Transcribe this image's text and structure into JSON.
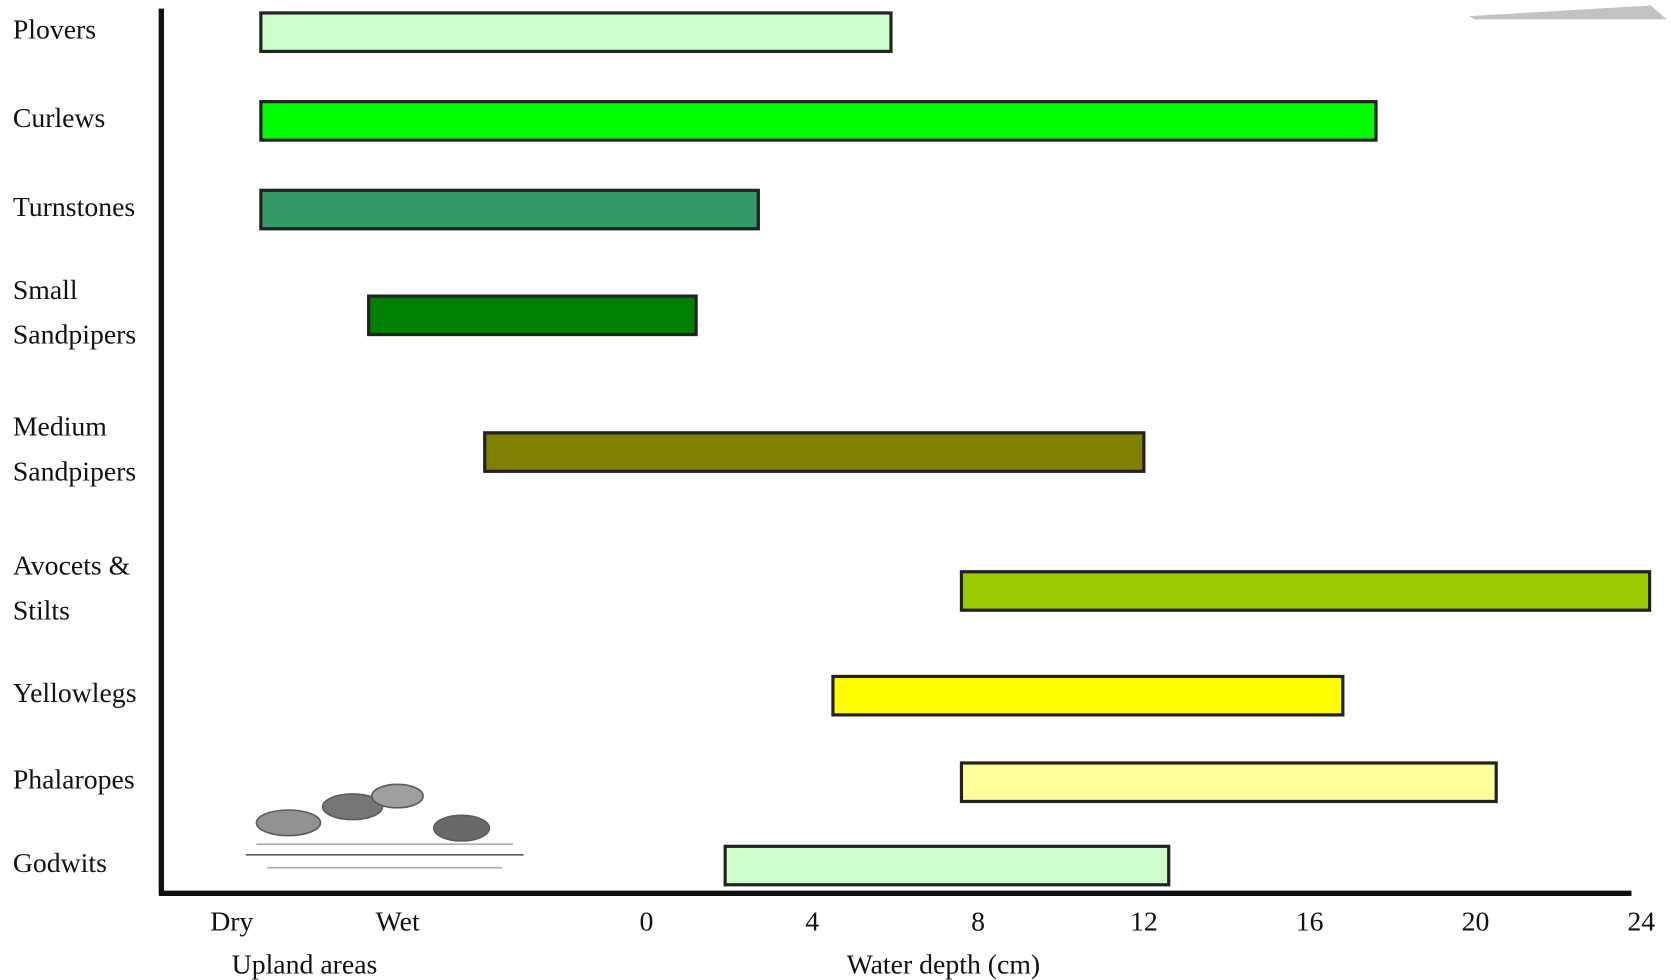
{
  "chart_data": {
    "type": "range_bar",
    "categories": [
      "Plovers",
      "Curlews",
      "Turnstones",
      "Small\nSandpipers",
      "Medium\nSandpipers",
      "Avocets &\nStilts",
      "Yellowlegs",
      "Phalaropes",
      "Godwits"
    ],
    "start": [
      -9.3,
      -9.3,
      -9.3,
      -6.7,
      -3.9,
      7.6,
      4.5,
      7.6,
      1.9
    ],
    "end": [
      5.9,
      17.6,
      2.7,
      1.2,
      12.0,
      24.2,
      16.8,
      20.5,
      12.6
    ],
    "colors": [
      "#ccffcc",
      "#00ff00",
      "#339966",
      "#008000",
      "#808000",
      "#99cc00",
      "#ffff00",
      "#ffff99",
      "#ccffcc"
    ],
    "xlim": [
      -12,
      25
    ],
    "xticks": [
      {
        "value": -10,
        "label": "Dry"
      },
      {
        "value": -6,
        "label": "Wet"
      },
      0,
      4,
      8,
      12,
      16,
      20,
      24
    ],
    "xlabel": "Water depth (cm)",
    "xlabel_secondary": "Upland areas"
  }
}
